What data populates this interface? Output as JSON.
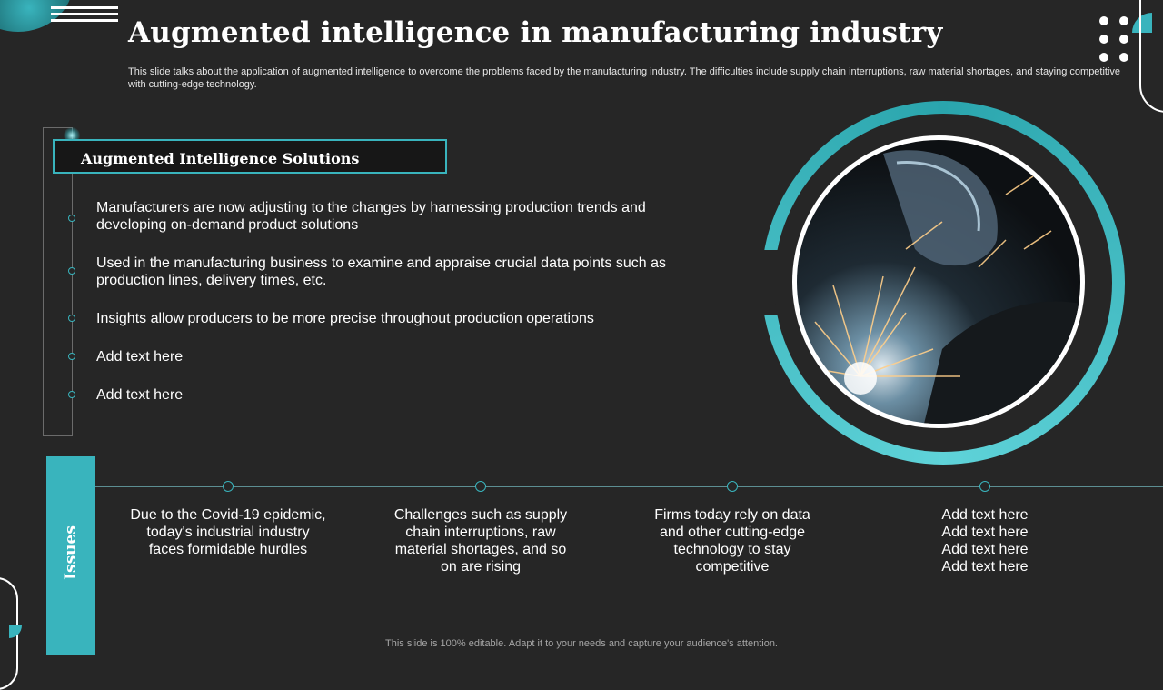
{
  "slide": {
    "title": "Augmented intelligence in manufacturing industry",
    "subtitle": "This slide talks about the application of augmented intelligence to overcome the problems faced by the manufacturing industry. The difficulties include supply chain interruptions, raw material shortages, and staying competitive with cutting-edge technology."
  },
  "solutions": {
    "header": "Augmented Intelligence Solutions",
    "items": [
      {
        "text": "Manufacturers  are now adjusting to the changes by harnessing production trends and developing on-demand product solutions"
      },
      {
        "text": "Used in the manufacturing  business to examine and appraise crucial data points such as production lines, delivery times, etc."
      },
      {
        "text": "Insights  allow producers to be more precise throughout  production operations"
      },
      {
        "text": "Add text here"
      },
      {
        "text": "Add text here"
      }
    ]
  },
  "issues": {
    "label": "Issues",
    "items": [
      {
        "text": "Due to the Covid-19 epidemic, today's industrial industry faces formidable hurdles"
      },
      {
        "text": "Challenges such as supply chain interruptions, raw material shortages, and so on are rising"
      },
      {
        "text": "Firms today rely on data and other cutting-edge technology to stay competitive"
      },
      {
        "text": "Add text here Add text here Add text here Add text here"
      }
    ]
  },
  "footer": {
    "text": "This slide is 100% editable. Adapt it to your needs and capture your audience's attention."
  },
  "colors": {
    "accent": "#39b4bd",
    "background": "#262626",
    "text": "#ffffff"
  },
  "icons": {
    "menu": "hamburger-icon",
    "dots": "dot-grid-icon"
  }
}
